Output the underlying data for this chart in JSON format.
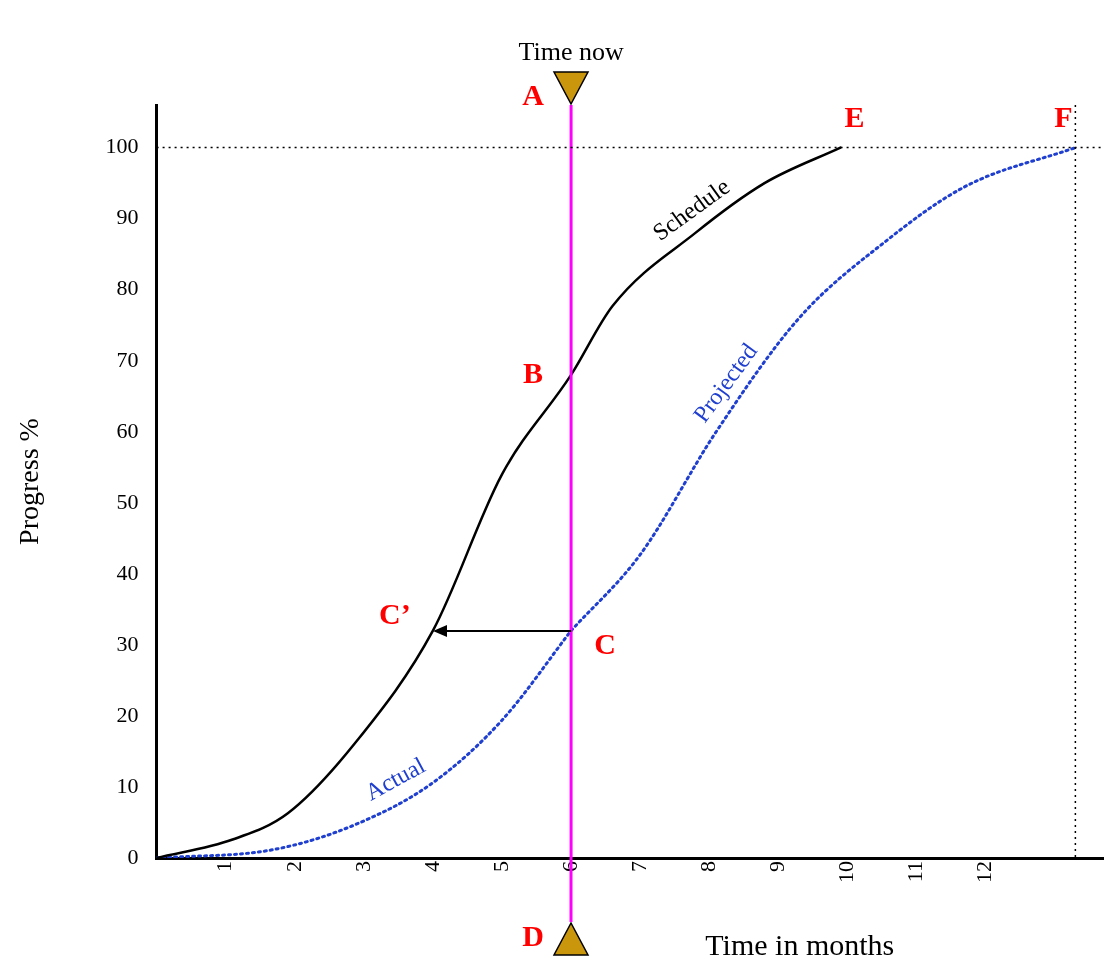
{
  "chart_data": {
    "type": "line",
    "xlabel": "Time in months",
    "ylabel": "Progress %",
    "xlim": [
      0,
      13.7
    ],
    "xticks": [
      1,
      2,
      3,
      4,
      5,
      6,
      7,
      8,
      9,
      10,
      11,
      12
    ],
    "ylim": [
      0,
      106
    ],
    "yticks": [
      0,
      10,
      20,
      30,
      40,
      50,
      60,
      70,
      80,
      90,
      100
    ],
    "grid": false,
    "legend": false,
    "marker": "none",
    "series": [
      {
        "name": "Schedule",
        "color": "#000000",
        "line_style": "solid",
        "x": [
          0,
          1.1,
          1.9,
          2.9,
          4,
          5,
          6,
          6.6,
          7.8,
          8.8,
          9.9
        ],
        "values": [
          0,
          2.6,
          6.3,
          16.5,
          32,
          54,
          68,
          77.7,
          88,
          95,
          100
        ]
      },
      {
        "name": "Actual",
        "color": "#1f3fd0",
        "line_style": "dotted",
        "x": [
          0,
          1.7,
          2.9,
          4,
          5,
          6
        ],
        "values": [
          0,
          1.2,
          4.8,
          10.6,
          19.4,
          32
        ]
      },
      {
        "name": "Projected",
        "color": "#1f3fd0",
        "line_style": "dotted",
        "x": [
          6,
          7,
          8.1,
          9.3,
          10.5,
          11.7,
          13.3
        ],
        "values": [
          32,
          42.7,
          60,
          76,
          86.4,
          94.5,
          100
        ]
      }
    ],
    "ref_lines": [
      {
        "axis": "x",
        "value": 6,
        "label": "Time now",
        "color": "#ff00ff",
        "line_style": "solid"
      },
      {
        "axis": "y",
        "value": 100,
        "color": "#000000",
        "line_style": "dotted"
      },
      {
        "axis": "x",
        "value": 13.3,
        "color": "#000000",
        "line_style": "dotted"
      }
    ],
    "annotations": [
      "A",
      "D",
      {
        "text": "B",
        "x": 6,
        "y": 68
      },
      {
        "text": "C",
        "x": 6,
        "y": 32
      },
      {
        "text": "C’",
        "x": 4,
        "y": 32
      },
      {
        "text": "E",
        "x": 9.9,
        "y": 100
      },
      {
        "text": "F",
        "x": 13.3,
        "y": 100
      }
    ]
  }
}
